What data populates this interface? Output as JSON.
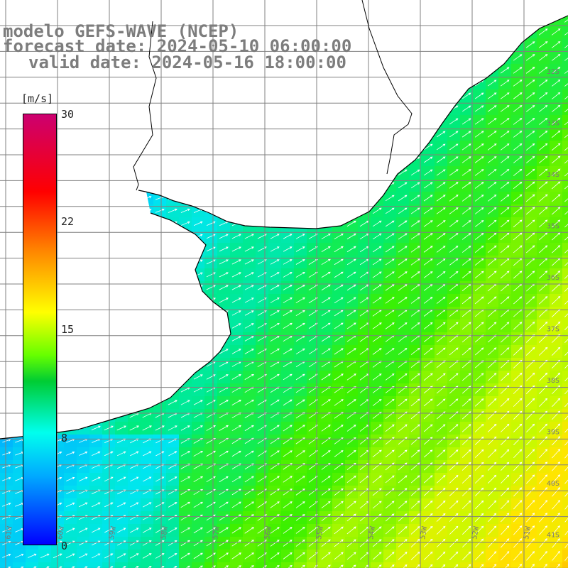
{
  "header": {
    "line1": "modelo GEFS-WAVE (NCEP)",
    "line2": "forecast date: 2024-05-10 06:00:00",
    "line3": "valid date: 2024-05-16 18:00:00"
  },
  "colorbar": {
    "unit": "[m/s]",
    "ticks": [
      "30",
      "22",
      "15",
      "8",
      "0"
    ],
    "colors": [
      "#cc0070",
      "#ff0000",
      "#ff8800",
      "#ffff00",
      "#66ff00",
      "#00cc33",
      "#00ffee",
      "#00aaff",
      "#0000ff"
    ]
  },
  "lat_labels": [
    "32S",
    "33S",
    "34S",
    "35S",
    "36S",
    "37S",
    "38S",
    "39S",
    "40S",
    "41S"
  ],
  "lon_labels": [
    "61W",
    "60W",
    "59W",
    "58W",
    "57W",
    "56W",
    "55W",
    "54W",
    "53W",
    "52W",
    "51W"
  ],
  "colors": {
    "land": "#ffffff",
    "coast": "#000000",
    "grid": "#808080",
    "arrows": "#ffffff"
  }
}
